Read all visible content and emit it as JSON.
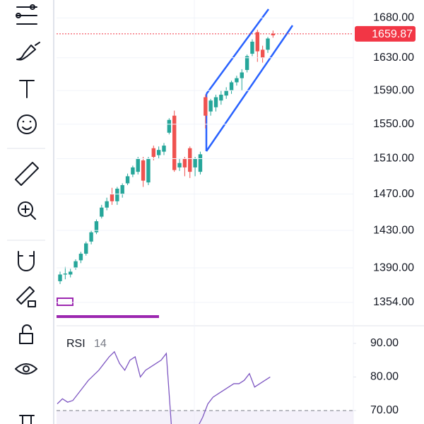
{
  "chart_data": [
    {
      "type": "candlestick",
      "log_scale": true,
      "open": [
        1376,
        1383,
        1383,
        1390,
        1398,
        1405,
        1418,
        1428,
        1445,
        1455,
        1470,
        1462,
        1470,
        1482,
        1492,
        1495,
        1508,
        1483,
        1522,
        1514,
        1518,
        1540,
        1560,
        1500,
        1510,
        1522,
        1500,
        1495,
        1582,
        1565,
        1570,
        1578,
        1584,
        1590,
        1600,
        1605,
        1615,
        1635,
        1662,
        1640,
        1640,
        1660
      ],
      "high": [
        1386,
        1391,
        1389,
        1399,
        1407,
        1418,
        1430,
        1442,
        1458,
        1466,
        1477,
        1478,
        1482,
        1493,
        1502,
        1512,
        1512,
        1512,
        1525,
        1524,
        1528,
        1557,
        1566,
        1510,
        1512,
        1524,
        1512,
        1518,
        1585,
        1580,
        1585,
        1590,
        1594,
        1602,
        1608,
        1616,
        1634,
        1653,
        1665,
        1645,
        1656,
        1664
      ],
      "low": [
        1373,
        1378,
        1380,
        1388,
        1395,
        1403,
        1415,
        1426,
        1443,
        1452,
        1458,
        1458,
        1466,
        1480,
        1489,
        1492,
        1478,
        1480,
        1508,
        1510,
        1514,
        1538,
        1495,
        1496,
        1490,
        1488,
        1490,
        1492,
        1545,
        1560,
        1565,
        1573,
        1580,
        1586,
        1596,
        1590,
        1612,
        1632,
        1625,
        1624,
        1636,
        1655
      ],
      "close": [
        1383,
        1384,
        1386,
        1397,
        1405,
        1416,
        1428,
        1440,
        1455,
        1462,
        1462,
        1476,
        1480,
        1490,
        1500,
        1510,
        1485,
        1510,
        1512,
        1520,
        1525,
        1555,
        1497,
        1505,
        1500,
        1495,
        1510,
        1515,
        1560,
        1578,
        1582,
        1585,
        1590,
        1600,
        1605,
        1612,
        1632,
        1650,
        1638,
        1630,
        1654,
        1658
      ],
      "up_color": "#26a69a",
      "down_color": "#ef5350",
      "ylim": [
        1331,
        1703
      ],
      "yticks": [
        {
          "value": 1354,
          "label": "1354.00"
        },
        {
          "value": 1390,
          "label": "1390.00"
        },
        {
          "value": 1430,
          "label": "1430.00"
        },
        {
          "value": 1470,
          "label": "1470.00"
        },
        {
          "value": 1510,
          "label": "1510.00"
        },
        {
          "value": 1550,
          "label": "1550.00"
        },
        {
          "value": 1590,
          "label": "1590.00"
        },
        {
          "value": 1630,
          "label": "1630.00"
        },
        {
          "value": 1680,
          "label": "1680.00"
        }
      ],
      "last_price": 1659.87,
      "last_price_color": "#f23645",
      "grid": true
    },
    {
      "type": "line",
      "title": "RSI",
      "period": 14,
      "color": "#7e57c2",
      "values": [
        72,
        73.5,
        72.5,
        73,
        75,
        77,
        79,
        80.5,
        82,
        84,
        86,
        87.5,
        84,
        82,
        85,
        86,
        80,
        82,
        83,
        84,
        85,
        87,
        65,
        65,
        65,
        65,
        65,
        65,
        68,
        72,
        74,
        75,
        76,
        77,
        78,
        78,
        79,
        81,
        77,
        78,
        79,
        80
      ],
      "ylim": [
        66,
        94.4
      ],
      "yticks": [
        {
          "value": 70,
          "label": "70.00"
        },
        {
          "value": 80,
          "label": "80.00"
        },
        {
          "value": 90,
          "label": "90.00"
        }
      ],
      "level": 70
    }
  ]
}
